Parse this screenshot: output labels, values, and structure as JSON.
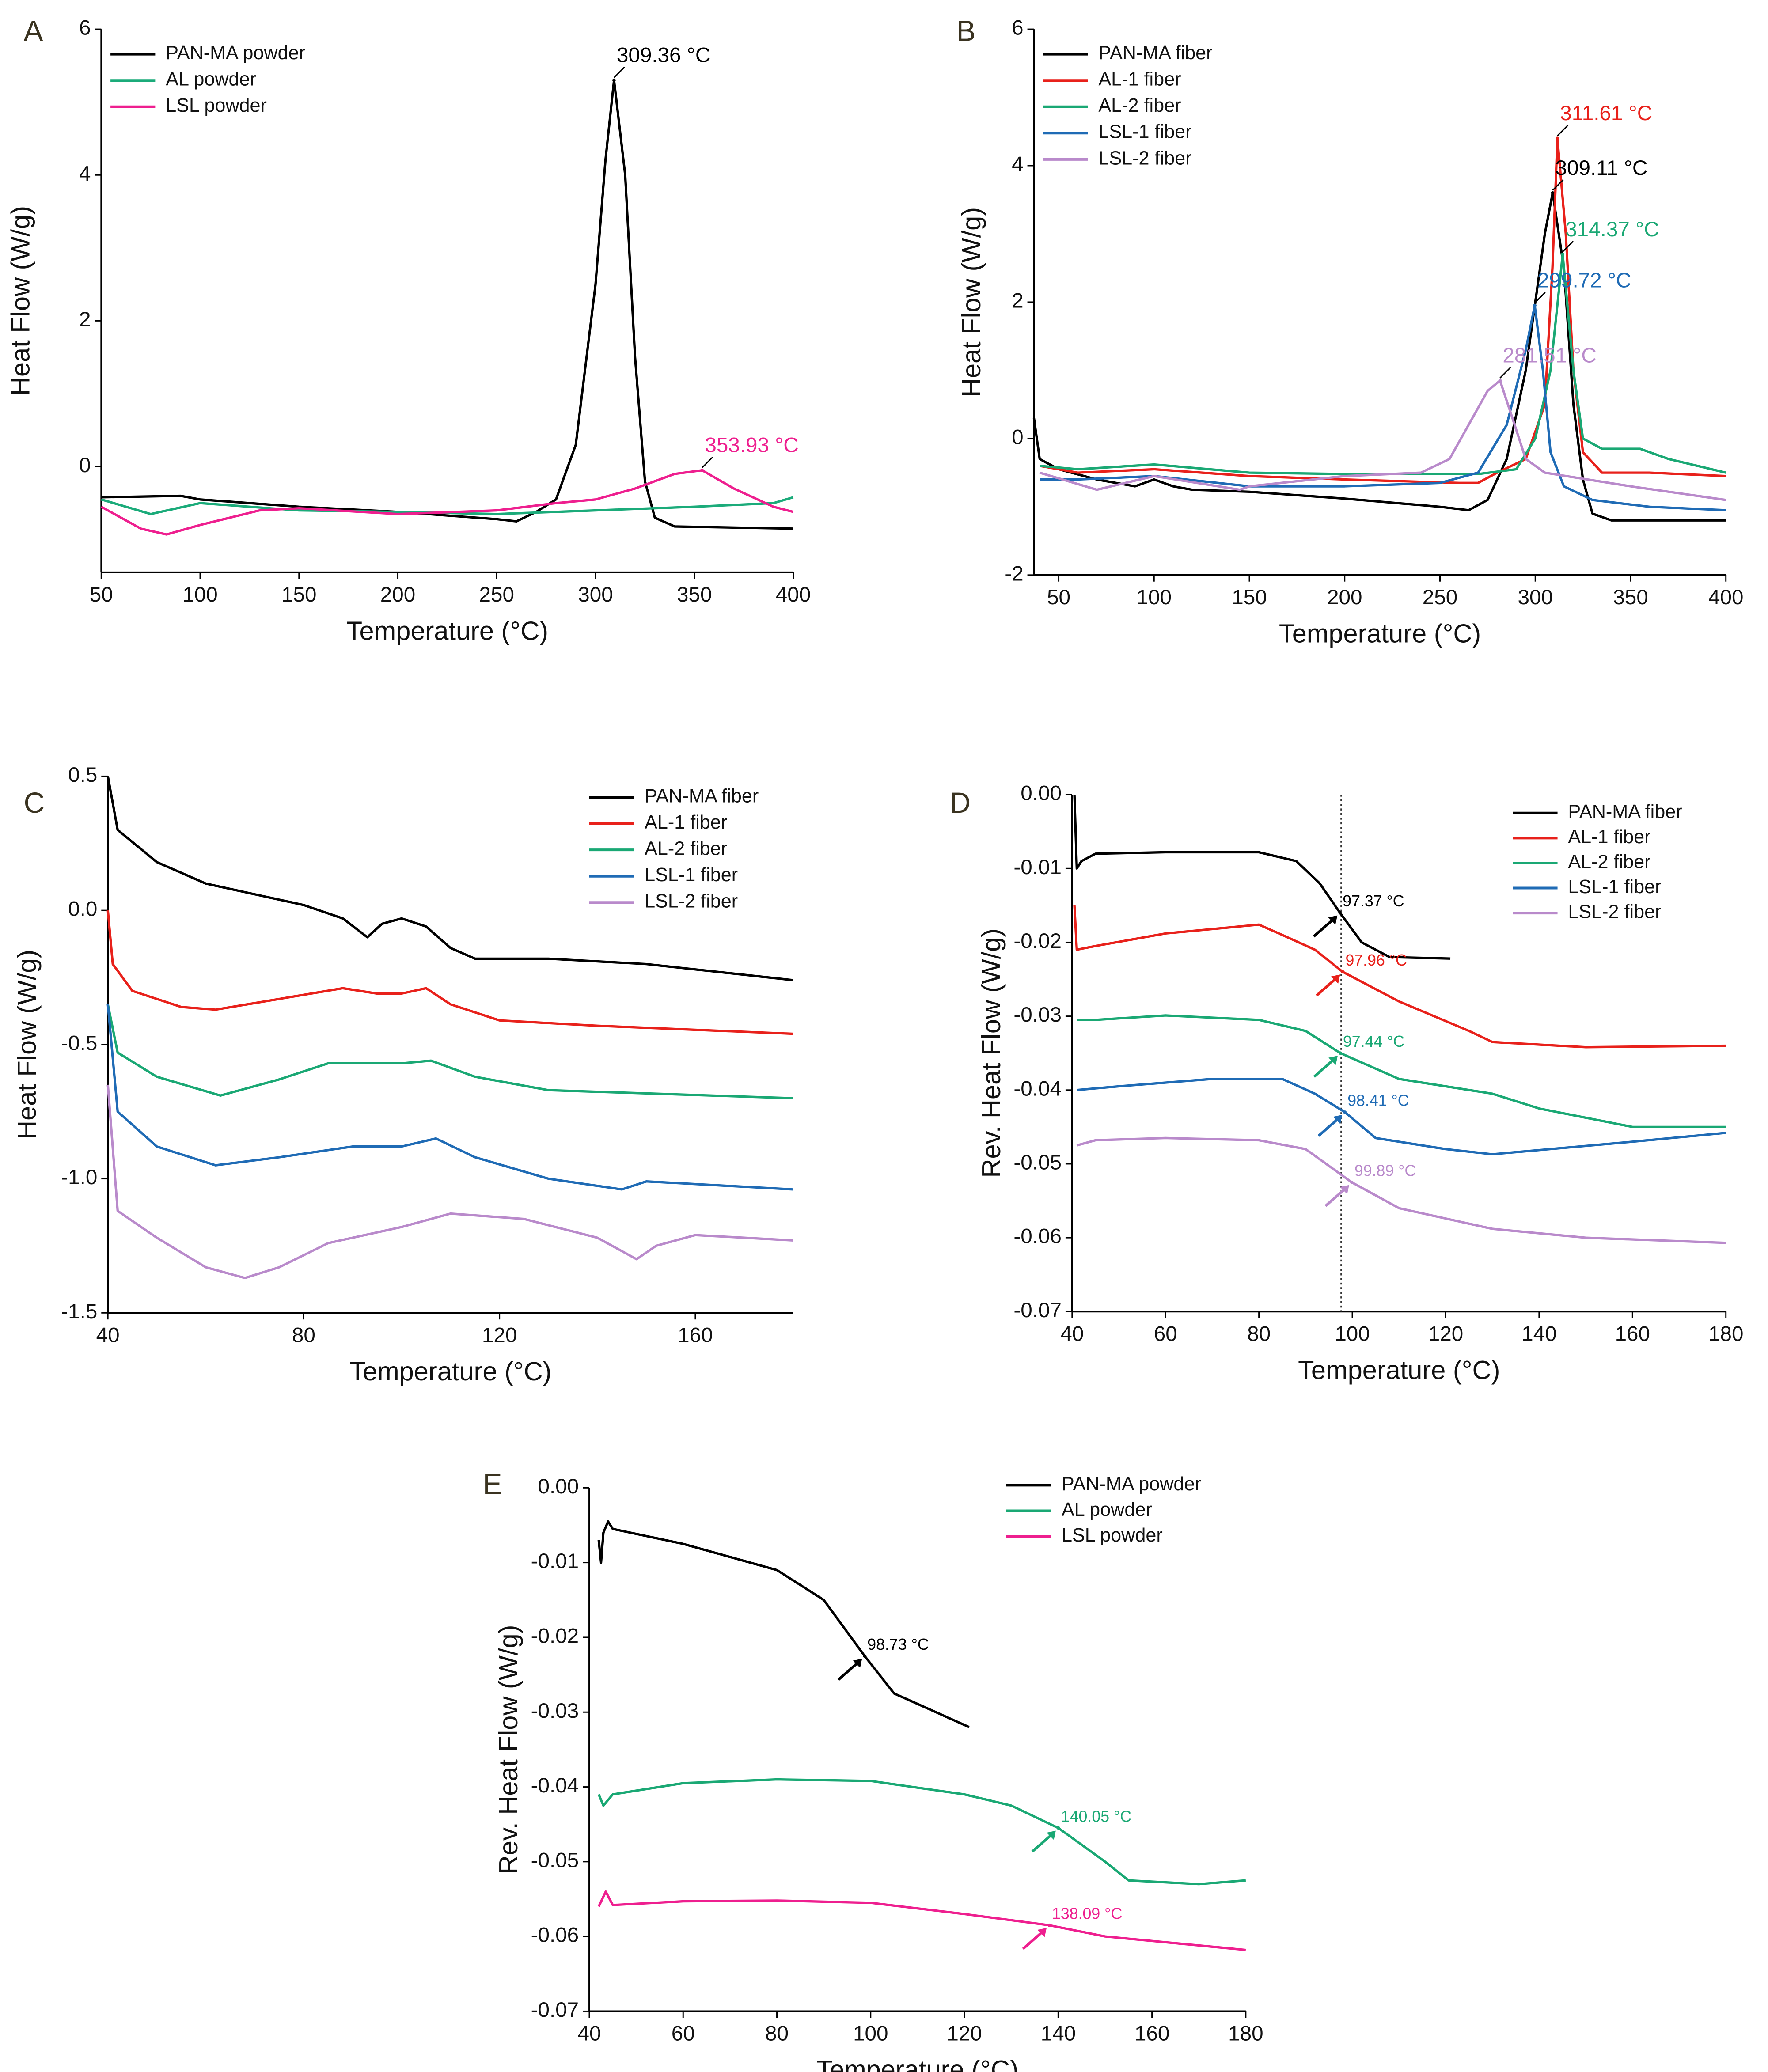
{
  "chart_data": [
    {
      "type": "line",
      "panel": "A",
      "x_label": "Temperature (°C)",
      "y_label": "Heat Flow (W/g)",
      "xlim": [
        50,
        400
      ],
      "ylim": [
        -1.45,
        6
      ],
      "xticks": [
        50,
        100,
        150,
        200,
        250,
        300,
        350,
        400
      ],
      "yticks": [
        0,
        2,
        4,
        6
      ],
      "legend": "upper left",
      "series": [
        {
          "name": "PAN-MA powder",
          "color": "#000000",
          "x": [
            50,
            90,
            100,
            150,
            200,
            250,
            260,
            270,
            280,
            290,
            300,
            305,
            309.36,
            315,
            320,
            325,
            330,
            340,
            400
          ],
          "values": [
            -0.42,
            -0.4,
            -0.45,
            -0.55,
            -0.62,
            -0.72,
            -0.75,
            -0.62,
            -0.45,
            0.3,
            2.5,
            4.2,
            5.3,
            4.0,
            1.5,
            -0.2,
            -0.7,
            -0.82,
            -0.85
          ]
        },
        {
          "name": "AL powder",
          "color": "#1bab7a",
          "x": [
            50,
            75,
            100,
            150,
            200,
            250,
            300,
            350,
            390,
            400
          ],
          "values": [
            -0.45,
            -0.65,
            -0.5,
            -0.6,
            -0.62,
            -0.65,
            -0.6,
            -0.55,
            -0.5,
            -0.42
          ]
        },
        {
          "name": "LSL powder",
          "color": "#ee1f8f",
          "x": [
            50,
            70,
            83,
            100,
            130,
            150,
            200,
            250,
            280,
            300,
            320,
            340,
            353.93,
            370,
            390,
            400
          ],
          "values": [
            -0.55,
            -0.85,
            -0.93,
            -0.8,
            -0.6,
            -0.57,
            -0.65,
            -0.6,
            -0.5,
            -0.45,
            -0.3,
            -0.1,
            -0.05,
            -0.3,
            -0.55,
            -0.62
          ]
        }
      ],
      "annotations": [
        {
          "label": "309.36 °C",
          "x": 309.36,
          "y": 5.3,
          "color": "#000000"
        },
        {
          "label": "353.93 °C",
          "x": 353.93,
          "y": -0.05,
          "color": "#ee1f8f"
        }
      ]
    },
    {
      "type": "line",
      "panel": "B",
      "x_label": "Temperature (°C)",
      "y_label": "Heat Flow (W/g)",
      "xlim": [
        37,
        400
      ],
      "ylim": [
        -2,
        6
      ],
      "xticks": [
        50,
        100,
        150,
        200,
        250,
        300,
        350,
        400
      ],
      "yticks": [
        -2,
        0,
        2,
        4,
        6
      ],
      "legend": "upper left",
      "series": [
        {
          "name": "PAN-MA fiber",
          "color": "#000000",
          "x": [
            37,
            40,
            50,
            70,
            90,
            100,
            110,
            120,
            150,
            200,
            250,
            265,
            275,
            285,
            295,
            305,
            309.11,
            315,
            320,
            325,
            330,
            340,
            400
          ],
          "values": [
            0.3,
            -0.3,
            -0.45,
            -0.6,
            -0.7,
            -0.6,
            -0.7,
            -0.75,
            -0.78,
            -0.88,
            -1.0,
            -1.05,
            -0.9,
            -0.3,
            1.0,
            3.0,
            3.6,
            2.5,
            0.5,
            -0.6,
            -1.1,
            -1.2,
            -1.2
          ]
        },
        {
          "name": "AL-1 fiber",
          "color": "#e8211b",
          "x": [
            40,
            60,
            100,
            150,
            200,
            260,
            270,
            280,
            295,
            305,
            309,
            311.61,
            316,
            320,
            325,
            335,
            360,
            400
          ],
          "values": [
            -0.4,
            -0.5,
            -0.45,
            -0.55,
            -0.6,
            -0.65,
            -0.65,
            -0.5,
            -0.3,
            0.5,
            2.5,
            4.4,
            3.0,
            1.0,
            -0.2,
            -0.5,
            -0.5,
            -0.55
          ]
        },
        {
          "name": "AL-2 fiber",
          "color": "#1aa874",
          "x": [
            40,
            60,
            100,
            150,
            200,
            270,
            290,
            300,
            308,
            314.37,
            320,
            325,
            335,
            355,
            370,
            400
          ],
          "values": [
            -0.4,
            -0.45,
            -0.38,
            -0.5,
            -0.52,
            -0.52,
            -0.45,
            0.0,
            1.0,
            2.7,
            1.0,
            0.0,
            -0.15,
            -0.15,
            -0.3,
            -0.5
          ]
        },
        {
          "name": "LSL-1 fiber",
          "color": "#1f6bb5",
          "x": [
            40,
            60,
            100,
            150,
            200,
            250,
            270,
            285,
            295,
            299.72,
            304,
            308,
            315,
            330,
            360,
            400
          ],
          "values": [
            -0.6,
            -0.6,
            -0.55,
            -0.7,
            -0.7,
            -0.65,
            -0.5,
            0.2,
            1.3,
            1.95,
            1.0,
            -0.2,
            -0.7,
            -0.9,
            -1.0,
            -1.05
          ]
        },
        {
          "name": "LSL-2 fiber",
          "color": "#b98acb",
          "x": [
            40,
            70,
            100,
            145,
            150,
            200,
            240,
            255,
            265,
            275,
            281.51,
            288,
            295,
            305,
            350,
            400
          ],
          "values": [
            -0.5,
            -0.75,
            -0.55,
            -0.75,
            -0.7,
            -0.55,
            -0.5,
            -0.3,
            0.2,
            0.7,
            0.85,
            0.3,
            -0.3,
            -0.5,
            -0.7,
            -0.9
          ]
        }
      ],
      "annotations": [
        {
          "label": "309.11 °C",
          "x": 309.11,
          "y": 3.6,
          "color": "#000000"
        },
        {
          "label": "311.61 °C",
          "x": 311.61,
          "y": 4.4,
          "color": "#e8211b"
        },
        {
          "label": "314.37 °C",
          "x": 314.37,
          "y": 2.7,
          "color": "#1aa874"
        },
        {
          "label": "299.72 °C",
          "x": 299.72,
          "y": 1.95,
          "color": "#1f6bb5"
        },
        {
          "label": "281.51 °C",
          "x": 281.51,
          "y": 0.85,
          "color": "#b98acb"
        }
      ]
    },
    {
      "type": "line",
      "panel": "C",
      "x_label": "Temperature (°C)",
      "y_label": "Heat Flow (W/g)",
      "xlim": [
        40,
        180
      ],
      "ylim": [
        -1.5,
        0.5
      ],
      "xticks": [
        40,
        80,
        120,
        160
      ],
      "yticks": [
        {
          "value": -1.5,
          "label": "-1.5"
        },
        {
          "value": -1,
          "label": "-1.0"
        },
        -0.5,
        {
          "value": 0,
          "label": "0.0"
        },
        0.5
      ],
      "legend": "upper right",
      "series": [
        {
          "name": "PAN-MA fiber",
          "color": "#000000",
          "x": [
            40,
            42,
            50,
            60,
            70,
            80,
            88,
            93,
            96,
            100,
            105,
            110,
            115,
            130,
            150,
            180
          ],
          "values": [
            0.5,
            0.3,
            0.18,
            0.1,
            0.06,
            0.02,
            -0.03,
            -0.1,
            -0.05,
            -0.03,
            -0.06,
            -0.14,
            -0.18,
            -0.18,
            -0.2,
            -0.26
          ]
        },
        {
          "name": "AL-1 fiber",
          "color": "#e8211b",
          "x": [
            40,
            41,
            45,
            55,
            62,
            75,
            88,
            95,
            100,
            105,
            110,
            120,
            140,
            180
          ],
          "values": [
            0.0,
            -0.2,
            -0.3,
            -0.36,
            -0.37,
            -0.33,
            -0.29,
            -0.31,
            -0.31,
            -0.29,
            -0.35,
            -0.41,
            -0.43,
            -0.46
          ]
        },
        {
          "name": "AL-2 fiber",
          "color": "#1aa874",
          "x": [
            40,
            42,
            50,
            63,
            75,
            85,
            100,
            106,
            115,
            130,
            180
          ],
          "values": [
            -0.35,
            -0.53,
            -0.62,
            -0.69,
            -0.63,
            -0.57,
            -0.57,
            -0.56,
            -0.62,
            -0.67,
            -0.7
          ]
        },
        {
          "name": "LSL-1 fiber",
          "color": "#1f6bb5",
          "x": [
            40,
            42,
            50,
            62,
            75,
            90,
            100,
            107,
            115,
            130,
            145,
            150,
            180
          ],
          "values": [
            -0.35,
            -0.75,
            -0.88,
            -0.95,
            -0.92,
            -0.88,
            -0.88,
            -0.85,
            -0.92,
            -1.0,
            -1.04,
            -1.01,
            -1.04
          ]
        },
        {
          "name": "LSL-2 fiber",
          "color": "#b98acb",
          "x": [
            40,
            42,
            50,
            60,
            68,
            75,
            85,
            100,
            110,
            125,
            140,
            148,
            152,
            160,
            180
          ],
          "values": [
            -0.65,
            -1.12,
            -1.22,
            -1.33,
            -1.37,
            -1.33,
            -1.24,
            -1.18,
            -1.13,
            -1.15,
            -1.22,
            -1.3,
            -1.25,
            -1.21,
            -1.23
          ]
        }
      ],
      "annotations": []
    },
    {
      "type": "line",
      "panel": "D",
      "x_label": "Temperature (°C)",
      "y_label": "Rev. Heat Flow (W/g)",
      "xlim": [
        40,
        180
      ],
      "ylim": [
        -0.07,
        0
      ],
      "xticks": [
        40,
        60,
        80,
        100,
        120,
        140,
        160,
        180
      ],
      "yticks": [
        -0.07,
        -0.06,
        -0.05,
        -0.04,
        -0.03,
        -0.02,
        -0.01,
        {
          "value": 0,
          "label": "0.00"
        }
      ],
      "legend": "upper right",
      "reference_line_x": 97.6,
      "series": [
        {
          "name": "PAN-MA fiber",
          "color": "#000000",
          "x": [
            40.5,
            41,
            42,
            45,
            60,
            80,
            88,
            93,
            97.37,
            102,
            108,
            121
          ],
          "values": [
            0.0,
            -0.01,
            -0.009,
            -0.008,
            -0.0078,
            -0.0078,
            -0.009,
            -0.012,
            -0.016,
            -0.02,
            -0.022,
            -0.0222
          ]
        },
        {
          "name": "AL-1 fiber",
          "color": "#e8211b",
          "x": [
            40.5,
            41,
            45,
            60,
            80,
            85,
            92,
            97.96,
            110,
            125,
            130,
            150,
            180
          ],
          "values": [
            -0.015,
            -0.021,
            -0.0205,
            -0.0188,
            -0.0176,
            -0.019,
            -0.021,
            -0.024,
            -0.028,
            -0.032,
            -0.0335,
            -0.0342,
            -0.034
          ]
        },
        {
          "name": "AL-2 fiber",
          "color": "#1aa874",
          "x": [
            41,
            45,
            60,
            80,
            90,
            97.44,
            110,
            130,
            140,
            160,
            180
          ],
          "values": [
            -0.0305,
            -0.0305,
            -0.0299,
            -0.0305,
            -0.032,
            -0.035,
            -0.0385,
            -0.0405,
            -0.0425,
            -0.045,
            -0.045
          ]
        },
        {
          "name": "LSL-1 fiber",
          "color": "#1f6bb5",
          "x": [
            41,
            50,
            70,
            85,
            92,
            98.41,
            105,
            120,
            130,
            160,
            180
          ],
          "values": [
            -0.04,
            -0.0395,
            -0.0385,
            -0.0385,
            -0.0405,
            -0.043,
            -0.0465,
            -0.048,
            -0.0487,
            -0.047,
            -0.0458
          ]
        },
        {
          "name": "LSL-2 fiber",
          "color": "#b98acb",
          "x": [
            41,
            45,
            60,
            80,
            90,
            99.89,
            110,
            130,
            150,
            180
          ],
          "values": [
            -0.0475,
            -0.0468,
            -0.0465,
            -0.0468,
            -0.048,
            -0.0525,
            -0.056,
            -0.0588,
            -0.06,
            -0.0607
          ]
        }
      ],
      "annotations": [
        {
          "label": "97.37 °C",
          "x": 97.37,
          "y": -0.016,
          "color": "#000000"
        },
        {
          "label": "97.96 °C",
          "x": 97.96,
          "y": -0.024,
          "color": "#e8211b"
        },
        {
          "label": "97.44 °C",
          "x": 97.44,
          "y": -0.035,
          "color": "#1aa874"
        },
        {
          "label": "98.41 °C",
          "x": 98.41,
          "y": -0.043,
          "color": "#1f6bb5"
        },
        {
          "label": "99.89 °C",
          "x": 99.89,
          "y": -0.0525,
          "color": "#b98acb"
        }
      ]
    },
    {
      "type": "line",
      "panel": "E",
      "x_label": "Temperature (°C)",
      "y_label": "Rev. Heat Flow (W/g)",
      "xlim": [
        40,
        180
      ],
      "ylim": [
        -0.07,
        0
      ],
      "xticks": [
        40,
        60,
        80,
        100,
        120,
        140,
        160,
        180
      ],
      "yticks": [
        -0.07,
        -0.06,
        -0.05,
        -0.04,
        -0.03,
        -0.02,
        -0.01,
        {
          "value": 0,
          "label": "0.00"
        }
      ],
      "legend": "upper right",
      "series": [
        {
          "name": "PAN-MA powder",
          "color": "#000000",
          "x": [
            42,
            42.5,
            43,
            44,
            45,
            60,
            80,
            90,
            98.73,
            105,
            121
          ],
          "values": [
            -0.007,
            -0.01,
            -0.006,
            -0.0045,
            -0.0055,
            -0.0075,
            -0.011,
            -0.015,
            -0.0225,
            -0.0275,
            -0.032
          ]
        },
        {
          "name": "AL powder",
          "color": "#1aa874",
          "x": [
            42,
            43,
            45,
            60,
            80,
            100,
            120,
            130,
            140.05,
            150,
            155,
            170,
            180
          ],
          "values": [
            -0.041,
            -0.0425,
            -0.041,
            -0.0395,
            -0.039,
            -0.0392,
            -0.041,
            -0.0425,
            -0.0455,
            -0.05,
            -0.0525,
            -0.053,
            -0.0525
          ]
        },
        {
          "name": "LSL powder",
          "color": "#ee1f8f",
          "x": [
            42,
            43.5,
            45,
            60,
            80,
            100,
            120,
            138.09,
            150,
            170,
            180
          ],
          "values": [
            -0.056,
            -0.054,
            -0.0558,
            -0.0553,
            -0.0552,
            -0.0555,
            -0.057,
            -0.0585,
            -0.06,
            -0.0612,
            -0.0618
          ]
        }
      ],
      "annotations": [
        {
          "label": "98.73 °C",
          "x": 98.73,
          "y": -0.0225,
          "color": "#000000"
        },
        {
          "label": "140.05 °C",
          "x": 140.05,
          "y": -0.0455,
          "color": "#1aa874"
        },
        {
          "label": "138.09 °C",
          "x": 138.09,
          "y": -0.0585,
          "color": "#ee1f8f"
        }
      ]
    }
  ]
}
